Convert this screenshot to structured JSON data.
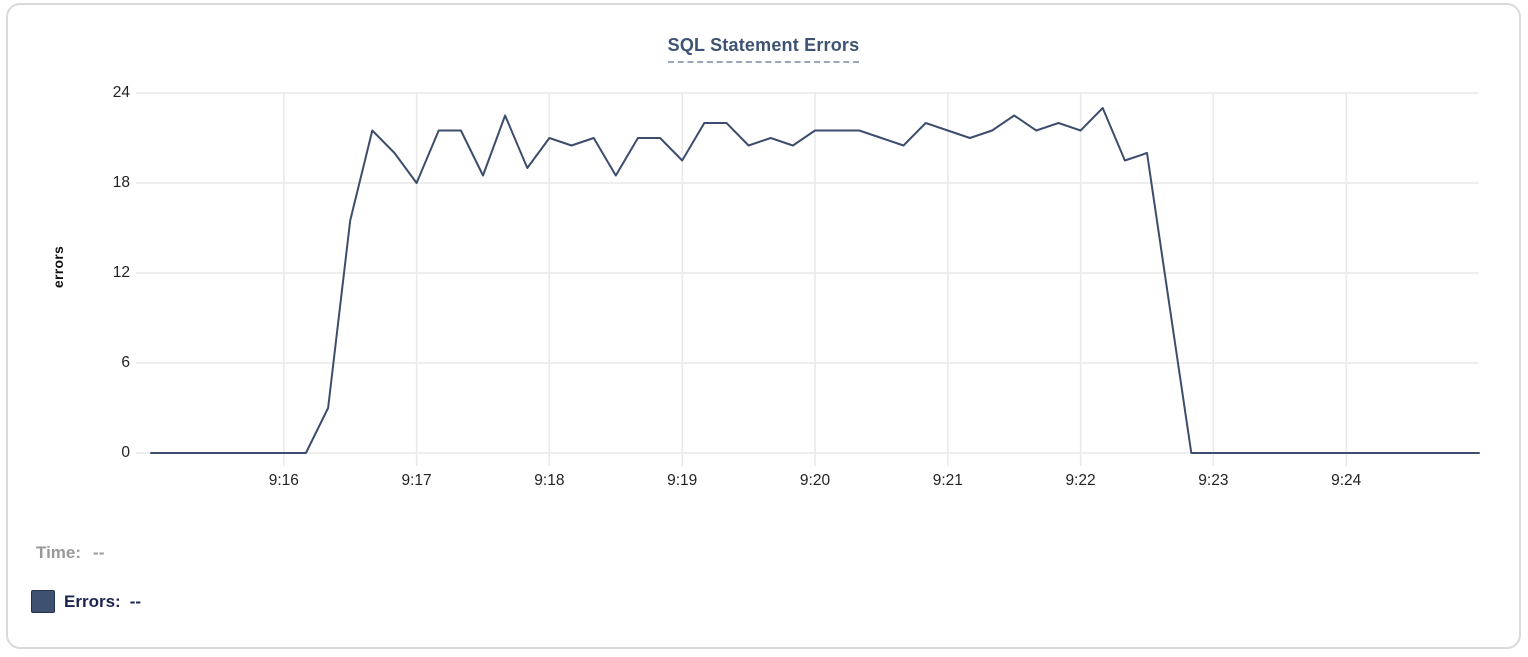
{
  "chart": {
    "title": "SQL Statement Errors",
    "y_axis_title": "errors"
  },
  "chart_data": {
    "type": "line",
    "title": "SQL Statement Errors",
    "xlabel": "",
    "ylabel": "errors",
    "ylim": [
      0,
      24
    ],
    "y_ticks": [
      24,
      18,
      12,
      6,
      0
    ],
    "x_tick_labels": [
      "9:16",
      "9:17",
      "9:18",
      "9:19",
      "9:20",
      "9:21",
      "9:22",
      "9:23",
      "9:24"
    ],
    "x_range": [
      "9:15",
      "9:25"
    ],
    "sample_interval_seconds": 10,
    "grid": true,
    "legend_position": "bottom-left",
    "series": [
      {
        "name": "Errors",
        "color": "#3d4d6c",
        "start_time": "9:15:00",
        "values": [
          0,
          0,
          0,
          0,
          0,
          0,
          0,
          0,
          3,
          15.5,
          21.5,
          20,
          18,
          21.5,
          21.5,
          18.5,
          22.5,
          19,
          21,
          20.5,
          21,
          18.5,
          21,
          21,
          19.5,
          22,
          22,
          20.5,
          21,
          20.5,
          21.5,
          21.5,
          21.5,
          21,
          20.5,
          22,
          21.5,
          21,
          21.5,
          22.5,
          21.5,
          22,
          21.5,
          23,
          19.5,
          20,
          10,
          0,
          0,
          0,
          0,
          0,
          0,
          0,
          0,
          0,
          0,
          0,
          0,
          0,
          0
        ]
      }
    ]
  },
  "tooltip": {
    "time_label": "Time:",
    "time_value": "--",
    "errors_label": "Errors:",
    "errors_value": "--"
  },
  "colors": {
    "line": "#3d4d6c",
    "title": "#3e5373",
    "title_underline": "#9aa6bb",
    "grid": "#e9e9e9",
    "axis_text": "#222222",
    "legend_time": "#999999",
    "legend_errors": "#1b2451",
    "swatch": "#3e5170"
  }
}
